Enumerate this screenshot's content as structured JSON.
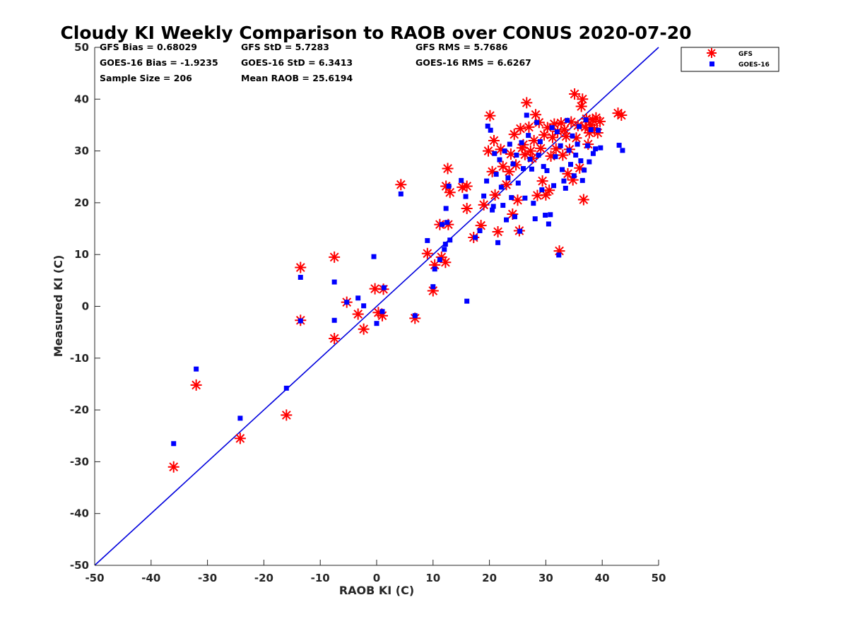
{
  "chart_data": {
    "type": "scatter",
    "title": "Cloudy KI Weekly Comparison to RAOB over CONUS 2020-07-20",
    "xlabel": "RAOB KI (C)",
    "ylabel": "Measured KI (C)",
    "xlim": [
      -50,
      50
    ],
    "ylim": [
      -50,
      50
    ],
    "xticks": [
      "-50",
      "-40",
      "-30",
      "-20",
      "-10",
      "0",
      "10",
      "20",
      "30",
      "40",
      "50"
    ],
    "yticks": [
      "-50",
      "-40",
      "-30",
      "-20",
      "-10",
      "0",
      "10",
      "20",
      "30",
      "40",
      "50"
    ],
    "legend_position": "outside top-right",
    "stats": [
      [
        "GFS Bias = 0.68029",
        "GFS StD = 5.7283",
        "GFS RMS = 5.7686"
      ],
      [
        "GOES-16 Bias = -1.9235",
        "GOES-16 StD = 6.3413",
        "GOES-16 RMS = 6.6267"
      ],
      [
        "Sample Size = 206",
        "Mean RAOB = 25.6194",
        ""
      ]
    ],
    "reference_line": {
      "name": "1:1 line",
      "x": [
        -50,
        50
      ],
      "y": [
        -50,
        50
      ],
      "color": "#0000dd"
    },
    "series": [
      {
        "name": "GFS",
        "marker": "asterisk",
        "color": "#ff0000",
        "points": [
          [
            -36,
            -31
          ],
          [
            -32,
            -15.2
          ],
          [
            -24.2,
            -25.5
          ],
          [
            -16,
            -21
          ],
          [
            -13.5,
            7.5
          ],
          [
            -13.5,
            -2.7
          ],
          [
            -7.5,
            9.5
          ],
          [
            -7.5,
            -6.2
          ],
          [
            -5.3,
            0.8
          ],
          [
            -3.3,
            -1.5
          ],
          [
            -2.3,
            -4.4
          ],
          [
            -0.3,
            3.4
          ],
          [
            0.3,
            -1.2
          ],
          [
            1.0,
            -1.8
          ],
          [
            1.2,
            3.3
          ],
          [
            4.3,
            23.5
          ],
          [
            6.8,
            -2.3
          ],
          [
            9.0,
            10.2
          ],
          [
            10.0,
            3.0
          ],
          [
            10.3,
            8.0
          ],
          [
            11.2,
            15.8
          ],
          [
            11.5,
            9.5
          ],
          [
            12.2,
            8.5
          ],
          [
            12.3,
            23.2
          ],
          [
            12.6,
            26.6
          ],
          [
            12.7,
            15.8
          ],
          [
            13.0,
            22.0
          ],
          [
            15.2,
            23.0
          ],
          [
            16.0,
            18.9
          ],
          [
            16.0,
            23.2
          ],
          [
            17.2,
            13.3
          ],
          [
            18.5,
            15.6
          ],
          [
            19.0,
            19.6
          ],
          [
            19.8,
            30.0
          ],
          [
            20.1,
            36.8
          ],
          [
            20.5,
            26.0
          ],
          [
            20.8,
            32.0
          ],
          [
            21.0,
            21.5
          ],
          [
            21.5,
            14.4
          ],
          [
            22.0,
            30.3
          ],
          [
            22.4,
            27.0
          ],
          [
            23.0,
            23.5
          ],
          [
            23.5,
            26.0
          ],
          [
            23.8,
            29.4
          ],
          [
            24.1,
            17.8
          ],
          [
            24.4,
            33.2
          ],
          [
            24.7,
            27.3
          ],
          [
            25.0,
            20.5
          ],
          [
            25.3,
            14.6
          ],
          [
            25.5,
            34.3
          ],
          [
            25.8,
            30.6
          ],
          [
            26.0,
            31.2
          ],
          [
            26.3,
            29.3
          ],
          [
            26.6,
            39.3
          ],
          [
            27.0,
            34.6
          ],
          [
            27.3,
            30.0
          ],
          [
            27.6,
            28.6
          ],
          [
            27.9,
            32.0
          ],
          [
            28.2,
            37.0
          ],
          [
            28.5,
            21.4
          ],
          [
            28.8,
            35.5
          ],
          [
            29.1,
            30.5
          ],
          [
            29.4,
            24.2
          ],
          [
            29.7,
            33.1
          ],
          [
            30.0,
            21.5
          ],
          [
            30.3,
            34.5
          ],
          [
            30.6,
            22.4
          ],
          [
            30.9,
            29.0
          ],
          [
            31.2,
            32.6
          ],
          [
            31.5,
            35.2
          ],
          [
            31.8,
            30.4
          ],
          [
            32.1,
            33.8
          ],
          [
            32.4,
            10.7
          ],
          [
            32.7,
            35.4
          ],
          [
            33.0,
            29.2
          ],
          [
            33.3,
            34.1
          ],
          [
            33.6,
            32.8
          ],
          [
            33.9,
            25.6
          ],
          [
            34.2,
            30.3
          ],
          [
            34.5,
            35.6
          ],
          [
            34.8,
            24.4
          ],
          [
            35.1,
            41.0
          ],
          [
            35.4,
            32.5
          ],
          [
            35.7,
            34.9
          ],
          [
            36.0,
            26.7
          ],
          [
            36.3,
            38.6
          ],
          [
            36.5,
            40.0
          ],
          [
            36.7,
            20.6
          ],
          [
            37.0,
            34.6
          ],
          [
            37.2,
            36.2
          ],
          [
            37.5,
            31.3
          ],
          [
            37.7,
            33.5
          ],
          [
            38.0,
            35.0
          ],
          [
            38.3,
            36.0
          ],
          [
            38.6,
            34.2
          ],
          [
            38.9,
            36.4
          ],
          [
            39.2,
            33.5
          ],
          [
            39.6,
            35.7
          ],
          [
            42.8,
            37.3
          ],
          [
            43.4,
            36.9
          ]
        ]
      },
      {
        "name": "GOES-16",
        "marker": "square",
        "color": "#0000ff",
        "points": [
          [
            -36,
            -26.5
          ],
          [
            -32,
            -12.1
          ],
          [
            -24.2,
            -21.6
          ],
          [
            -16,
            -15.8
          ],
          [
            -13.5,
            5.6
          ],
          [
            -13.5,
            -2.8
          ],
          [
            -7.5,
            4.7
          ],
          [
            -7.5,
            -2.7
          ],
          [
            -5.3,
            0.8
          ],
          [
            -3.3,
            1.6
          ],
          [
            -2.3,
            0.1
          ],
          [
            -0.5,
            9.6
          ],
          [
            0.0,
            -3.3
          ],
          [
            1.0,
            -1.0
          ],
          [
            1.3,
            3.6
          ],
          [
            4.3,
            21.7
          ],
          [
            6.8,
            -1.8
          ],
          [
            9.0,
            12.7
          ],
          [
            10.0,
            3.8
          ],
          [
            10.3,
            7.2
          ],
          [
            11.2,
            9.0
          ],
          [
            11.6,
            15.8
          ],
          [
            12.0,
            11.0
          ],
          [
            12.2,
            12.0
          ],
          [
            12.3,
            18.9
          ],
          [
            12.5,
            16.2
          ],
          [
            12.8,
            23.2
          ],
          [
            13.0,
            12.8
          ],
          [
            15.0,
            24.3
          ],
          [
            15.8,
            21.2
          ],
          [
            16.0,
            1.0
          ],
          [
            17.5,
            13.3
          ],
          [
            18.3,
            14.6
          ],
          [
            19.0,
            21.3
          ],
          [
            19.5,
            24.2
          ],
          [
            19.7,
            34.8
          ],
          [
            20.2,
            34.0
          ],
          [
            20.5,
            18.6
          ],
          [
            20.7,
            19.3
          ],
          [
            20.9,
            29.5
          ],
          [
            21.2,
            25.5
          ],
          [
            21.5,
            12.3
          ],
          [
            21.8,
            28.3
          ],
          [
            22.1,
            23.0
          ],
          [
            22.4,
            19.5
          ],
          [
            22.7,
            30.0
          ],
          [
            23.0,
            16.7
          ],
          [
            23.3,
            24.8
          ],
          [
            23.6,
            31.3
          ],
          [
            23.9,
            21.0
          ],
          [
            24.2,
            27.5
          ],
          [
            24.5,
            17.3
          ],
          [
            24.8,
            29.2
          ],
          [
            25.1,
            23.8
          ],
          [
            25.4,
            14.5
          ],
          [
            25.7,
            31.6
          ],
          [
            26.0,
            26.6
          ],
          [
            26.3,
            20.9
          ],
          [
            26.6,
            36.9
          ],
          [
            26.9,
            33.0
          ],
          [
            27.2,
            28.4
          ],
          [
            27.5,
            26.5
          ],
          [
            27.8,
            19.9
          ],
          [
            28.1,
            16.9
          ],
          [
            28.4,
            35.5
          ],
          [
            28.7,
            29.2
          ],
          [
            29.0,
            31.8
          ],
          [
            29.3,
            22.5
          ],
          [
            29.6,
            27.0
          ],
          [
            29.9,
            17.6
          ],
          [
            30.2,
            26.2
          ],
          [
            30.5,
            15.9
          ],
          [
            30.8,
            17.7
          ],
          [
            31.1,
            34.5
          ],
          [
            31.4,
            23.3
          ],
          [
            31.7,
            28.9
          ],
          [
            32.0,
            33.7
          ],
          [
            32.3,
            9.9
          ],
          [
            32.6,
            31.0
          ],
          [
            32.9,
            26.4
          ],
          [
            33.2,
            24.2
          ],
          [
            33.5,
            22.8
          ],
          [
            33.8,
            35.9
          ],
          [
            34.1,
            30.1
          ],
          [
            34.4,
            27.4
          ],
          [
            34.7,
            32.9
          ],
          [
            35.0,
            25.2
          ],
          [
            35.3,
            29.2
          ],
          [
            35.6,
            31.3
          ],
          [
            35.9,
            34.7
          ],
          [
            36.2,
            28.1
          ],
          [
            36.5,
            24.3
          ],
          [
            36.8,
            26.3
          ],
          [
            37.1,
            36.0
          ],
          [
            37.4,
            31.0
          ],
          [
            37.7,
            27.9
          ],
          [
            38.0,
            34.1
          ],
          [
            38.4,
            29.5
          ],
          [
            38.8,
            30.4
          ],
          [
            39.3,
            34.0
          ],
          [
            39.7,
            30.6
          ],
          [
            43.0,
            31.1
          ],
          [
            43.6,
            30.1
          ]
        ]
      }
    ]
  }
}
